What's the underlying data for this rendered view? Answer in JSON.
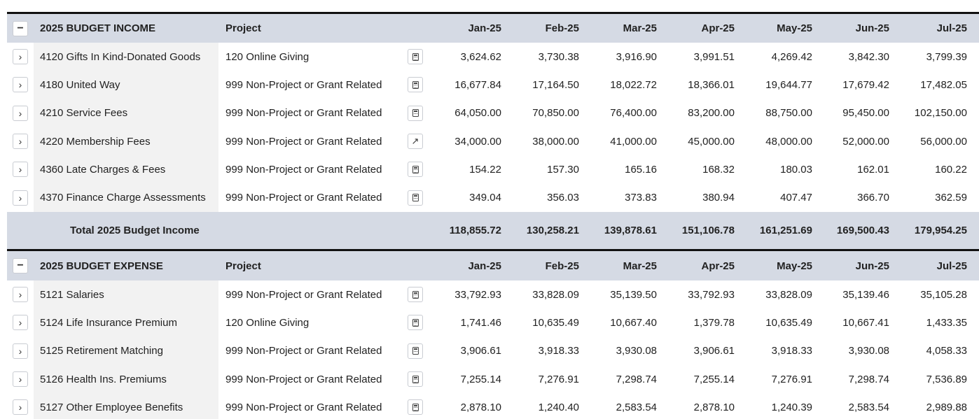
{
  "months": [
    "Jan-25",
    "Feb-25",
    "Mar-25",
    "Apr-25",
    "May-25",
    "Jun-25",
    "Jul-25"
  ],
  "income": {
    "header": {
      "toggle": "−",
      "title": "2025 BUDGET INCOME",
      "project_label": "Project"
    },
    "rows": [
      {
        "toggle": "›",
        "account": "4120 Gifts In Kind-Donated Goods",
        "project": "120 Online Giving",
        "icon": "calculator-icon",
        "values": [
          "3,624.62",
          "3,730.38",
          "3,916.90",
          "3,991.51",
          "4,269.42",
          "3,842.30",
          "3,799.39"
        ]
      },
      {
        "toggle": "›",
        "account": "4180 United Way",
        "project": "999 Non-Project or Grant Related",
        "icon": "calculator-icon",
        "values": [
          "16,677.84",
          "17,164.50",
          "18,022.72",
          "18,366.01",
          "19,644.77",
          "17,679.42",
          "17,482.05"
        ]
      },
      {
        "toggle": "›",
        "account": "4210 Service Fees",
        "project": "999 Non-Project or Grant Related",
        "icon": "calculator-icon",
        "values": [
          "64,050.00",
          "70,850.00",
          "76,400.00",
          "83,200.00",
          "88,750.00",
          "95,450.00",
          "102,150.00"
        ]
      },
      {
        "toggle": "›",
        "account": "4220 Membership Fees",
        "project": "999 Non-Project or Grant Related",
        "icon": "external-link-icon",
        "values": [
          "34,000.00",
          "38,000.00",
          "41,000.00",
          "45,000.00",
          "48,000.00",
          "52,000.00",
          "56,000.00"
        ]
      },
      {
        "toggle": "›",
        "account": "4360 Late Charges & Fees",
        "project": "999 Non-Project or Grant Related",
        "icon": "calculator-icon",
        "values": [
          "154.22",
          "157.30",
          "165.16",
          "168.32",
          "180.03",
          "162.01",
          "160.22"
        ]
      },
      {
        "toggle": "›",
        "account": "4370 Finance Charge Assessments",
        "project": "999 Non-Project or Grant Related",
        "icon": "calculator-icon",
        "values": [
          "349.04",
          "356.03",
          "373.83",
          "380.94",
          "407.47",
          "366.70",
          "362.59"
        ]
      }
    ],
    "total": {
      "label": "Total 2025 Budget Income",
      "values": [
        "118,855.72",
        "130,258.21",
        "139,878.61",
        "151,106.78",
        "161,251.69",
        "169,500.43",
        "179,954.25"
      ]
    }
  },
  "expense": {
    "header": {
      "toggle": "−",
      "title": "2025 BUDGET EXPENSE",
      "project_label": "Project"
    },
    "rows": [
      {
        "toggle": "›",
        "account": "5121 Salaries",
        "project": "999 Non-Project or Grant Related",
        "icon": "calculator-icon",
        "values": [
          "33,792.93",
          "33,828.09",
          "35,139.50",
          "33,792.93",
          "33,828.09",
          "35,139.46",
          "35,105.28"
        ]
      },
      {
        "toggle": "›",
        "account": "5124 Life Insurance Premium",
        "project": "120 Online Giving",
        "icon": "calculator-icon",
        "values": [
          "1,741.46",
          "10,635.49",
          "10,667.40",
          "1,379.78",
          "10,635.49",
          "10,667.41",
          "1,433.35"
        ]
      },
      {
        "toggle": "›",
        "account": "5125 Retirement Matching",
        "project": "999 Non-Project or Grant Related",
        "icon": "calculator-icon",
        "values": [
          "3,906.61",
          "3,918.33",
          "3,930.08",
          "3,906.61",
          "3,918.33",
          "3,930.08",
          "4,058.33"
        ]
      },
      {
        "toggle": "›",
        "account": "5126 Health Ins. Premiums",
        "project": "999 Non-Project or Grant Related",
        "icon": "calculator-icon",
        "values": [
          "7,255.14",
          "7,276.91",
          "7,298.74",
          "7,255.14",
          "7,276.91",
          "7,298.74",
          "7,536.89"
        ]
      },
      {
        "toggle": "›",
        "account": "5127 Other Employee Benefits",
        "project": "999 Non-Project or Grant Related",
        "icon": "calculator-icon",
        "values": [
          "2,878.10",
          "1,240.40",
          "2,583.54",
          "2,878.10",
          "1,240.39",
          "2,583.54",
          "2,989.88"
        ]
      }
    ]
  }
}
